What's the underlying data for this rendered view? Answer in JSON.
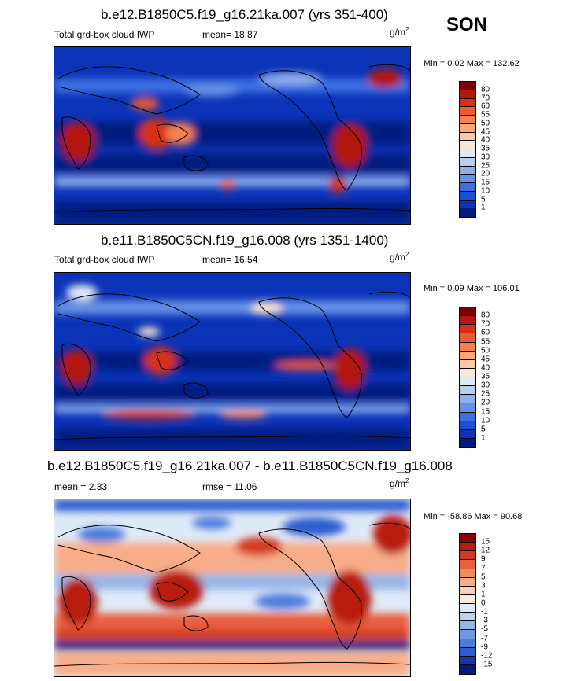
{
  "season": "SON",
  "panels": [
    {
      "title": "b.e12.B1850C5.f19_g16.21ka.007 (yrs 351-400)",
      "left_label": "Total grd-box cloud IWP",
      "mean_text": "mean=  18.87",
      "rmse_text": "",
      "units": "g/m",
      "units_sup": "2",
      "minmax": "Min =   0.02 Max = 132.62",
      "colorbar": {
        "labels": [
          "80",
          "70",
          "60",
          "55",
          "50",
          "45",
          "40",
          "35",
          "30",
          "25",
          "20",
          "15",
          "10",
          "5",
          "1"
        ],
        "colors": [
          "#7f0000",
          "#b2180e",
          "#d73016",
          "#ef5a32",
          "#f8814f",
          "#fba77a",
          "#fcc9a6",
          "#fbe7d6",
          "#dfe9f7",
          "#b9cff0",
          "#8fb0ea",
          "#6591e6",
          "#3c6fe2",
          "#1a4fd8",
          "#0a33b8",
          "#001a80"
        ]
      }
    },
    {
      "title": "b.e11.B1850C5CN.f19_g16.008 (yrs 1351-1400)",
      "left_label": "Total grd-box cloud IWP",
      "mean_text": "mean=  16.54",
      "rmse_text": "",
      "units": "g/m",
      "units_sup": "2",
      "minmax": "Min =   0.09 Max = 106.01",
      "colorbar": {
        "labels": [
          "80",
          "70",
          "60",
          "55",
          "50",
          "45",
          "40",
          "35",
          "30",
          "25",
          "20",
          "15",
          "10",
          "5",
          "1"
        ],
        "colors": [
          "#7f0000",
          "#b2180e",
          "#d73016",
          "#ef5a32",
          "#f8814f",
          "#fba77a",
          "#fcc9a6",
          "#fbe7d6",
          "#dfe9f7",
          "#b9cff0",
          "#8fb0ea",
          "#6591e6",
          "#3c6fe2",
          "#1a4fd8",
          "#0a33b8",
          "#001a80"
        ]
      }
    },
    {
      "title": "b.e12.B1850C5.f19_g16.21ka.007 - b.e11.B1850C5CN.f19_g16.008",
      "left_label": "mean =   2.33",
      "mean_text": "",
      "rmse_text": "rmse =  11.06",
      "units": "g/m",
      "units_sup": "2",
      "minmax": "Min = -58.86 Max =  90.68",
      "colorbar": {
        "labels": [
          "15",
          "12",
          "9",
          "7",
          "5",
          "3",
          "1",
          "0",
          "-1",
          "-3",
          "-5",
          "-7",
          "-9",
          "-12",
          "-15"
        ],
        "colors": [
          "#8b0000",
          "#b71c10",
          "#d43a22",
          "#e8603c",
          "#f28a60",
          "#f8ad88",
          "#fbd0b4",
          "#fdebdc",
          "#dfeaf8",
          "#bcd2f0",
          "#97b6e8",
          "#7199e2",
          "#4c7bdc",
          "#2a5bd0",
          "#1138b0",
          "#001a80"
        ]
      }
    }
  ]
}
